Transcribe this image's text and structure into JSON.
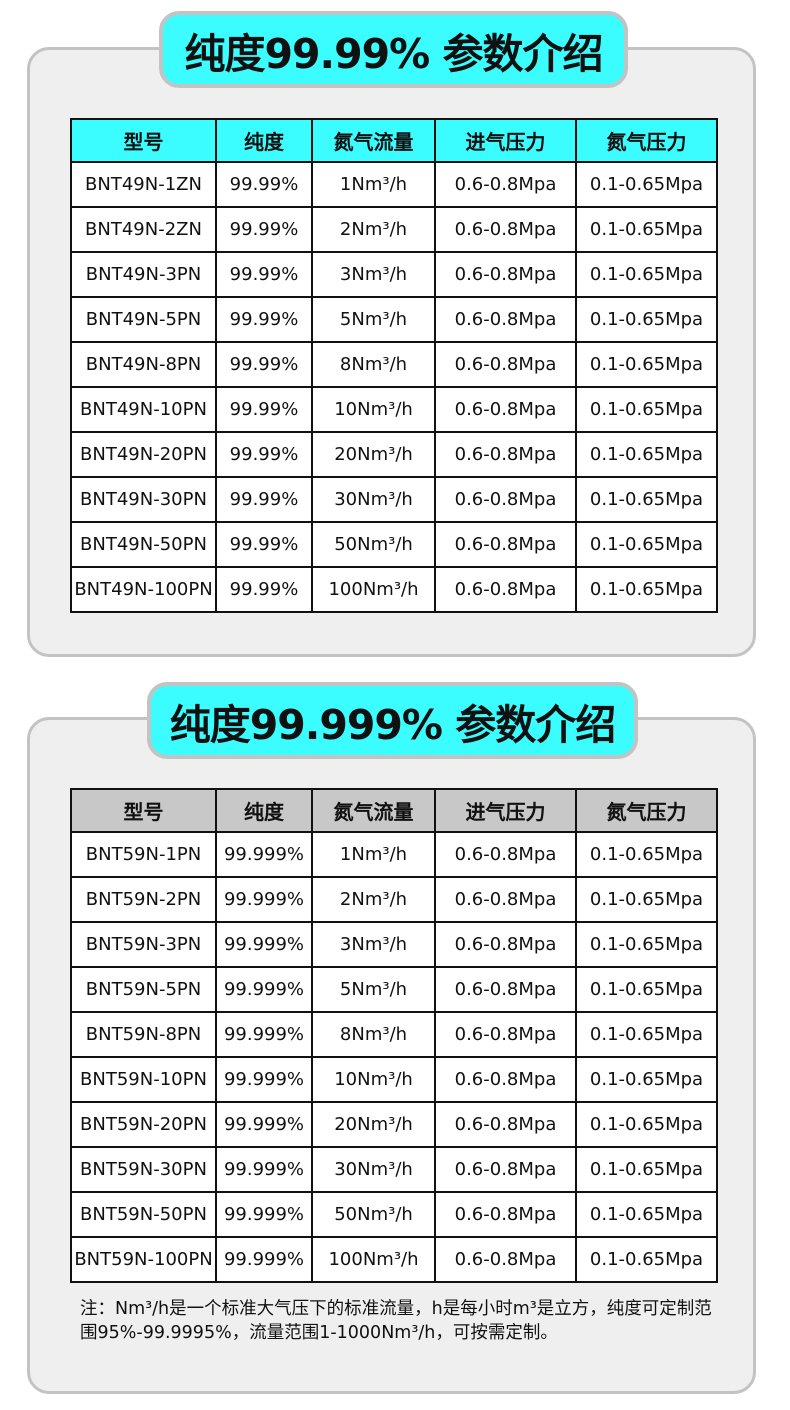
{
  "section1": {
    "title": "纯度99.99% 参数介绍",
    "header_color": "#3bfdff",
    "columns": [
      "型号",
      "纯度",
      "氮气流量",
      "进气压力",
      "氮气压力"
    ],
    "rows": [
      [
        "BNT49N-1ZN",
        "99.99%",
        "1Nm³/h",
        "0.6-0.8Mpa",
        "0.1-0.65Mpa"
      ],
      [
        "BNT49N-2ZN",
        "99.99%",
        "2Nm³/h",
        "0.6-0.8Mpa",
        "0.1-0.65Mpa"
      ],
      [
        "BNT49N-3PN",
        "99.99%",
        "3Nm³/h",
        "0.6-0.8Mpa",
        "0.1-0.65Mpa"
      ],
      [
        "BNT49N-5PN",
        "99.99%",
        "5Nm³/h",
        "0.6-0.8Mpa",
        "0.1-0.65Mpa"
      ],
      [
        "BNT49N-8PN",
        "99.99%",
        "8Nm³/h",
        "0.6-0.8Mpa",
        "0.1-0.65Mpa"
      ],
      [
        "BNT49N-10PN",
        "99.99%",
        "10Nm³/h",
        "0.6-0.8Mpa",
        "0.1-0.65Mpa"
      ],
      [
        "BNT49N-20PN",
        "99.99%",
        "20Nm³/h",
        "0.6-0.8Mpa",
        "0.1-0.65Mpa"
      ],
      [
        "BNT49N-30PN",
        "99.99%",
        "30Nm³/h",
        "0.6-0.8Mpa",
        "0.1-0.65Mpa"
      ],
      [
        "BNT49N-50PN",
        "99.99%",
        "50Nm³/h",
        "0.6-0.8Mpa",
        "0.1-0.65Mpa"
      ],
      [
        "BNT49N-100PN",
        "99.99%",
        "100Nm³/h",
        "0.6-0.8Mpa",
        "0.1-0.65Mpa"
      ]
    ]
  },
  "section2": {
    "title": "纯度99.999% 参数介绍",
    "header_color": "#c8c8c8",
    "columns": [
      "型号",
      "纯度",
      "氮气流量",
      "进气压力",
      "氮气压力"
    ],
    "rows": [
      [
        "BNT59N-1PN",
        "99.999%",
        "1Nm³/h",
        "0.6-0.8Mpa",
        "0.1-0.65Mpa"
      ],
      [
        "BNT59N-2PN",
        "99.999%",
        "2Nm³/h",
        "0.6-0.8Mpa",
        "0.1-0.65Mpa"
      ],
      [
        "BNT59N-3PN",
        "99.999%",
        "3Nm³/h",
        "0.6-0.8Mpa",
        "0.1-0.65Mpa"
      ],
      [
        "BNT59N-5PN",
        "99.999%",
        "5Nm³/h",
        "0.6-0.8Mpa",
        "0.1-0.65Mpa"
      ],
      [
        "BNT59N-8PN",
        "99.999%",
        "8Nm³/h",
        "0.6-0.8Mpa",
        "0.1-0.65Mpa"
      ],
      [
        "BNT59N-10PN",
        "99.999%",
        "10Nm³/h",
        "0.6-0.8Mpa",
        "0.1-0.65Mpa"
      ],
      [
        "BNT59N-20PN",
        "99.999%",
        "20Nm³/h",
        "0.6-0.8Mpa",
        "0.1-0.65Mpa"
      ],
      [
        "BNT59N-30PN",
        "99.999%",
        "30Nm³/h",
        "0.6-0.8Mpa",
        "0.1-0.65Mpa"
      ],
      [
        "BNT59N-50PN",
        "99.999%",
        "50Nm³/h",
        "0.6-0.8Mpa",
        "0.1-0.65Mpa"
      ],
      [
        "BNT59N-100PN",
        "99.999%",
        "100Nm³/h",
        "0.6-0.8Mpa",
        "0.1-0.65Mpa"
      ]
    ],
    "note": "注：Nm³/h是一个标准大气压下的标准流量，h是每小时m³是立方，纯度可定制范围95%-99.9995%，流量范围1-1000Nm³/h，可按需定制。"
  }
}
